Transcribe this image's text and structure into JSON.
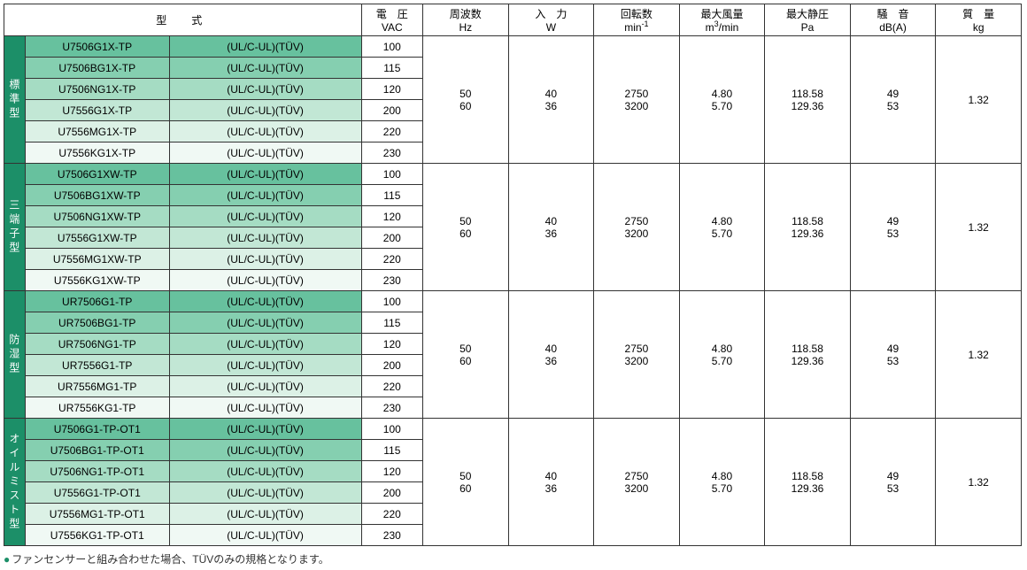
{
  "headers": {
    "model": "型　式",
    "voltage_l1": "電　圧",
    "voltage_l2": "VAC",
    "freq_l1": "周波数",
    "freq_l2": "Hz",
    "input_l1": "入　力",
    "input_l2": "W",
    "rpm_l1": "回転数",
    "rpm_l2_pre": "min",
    "rpm_l2_sup": "-1",
    "airflow_l1": "最大風量",
    "airflow_l2_pre": "m",
    "airflow_l2_sup": "3",
    "airflow_l2_post": "/min",
    "press_l1": "最大静圧",
    "press_l2": "Pa",
    "noise_l1": "騒　音",
    "noise_l2": "dB(A)",
    "mass_l1": "質　量",
    "mass_l2": "kg"
  },
  "categories": [
    {
      "label": "標準型",
      "rows": [
        {
          "model": "U7506G1X-TP",
          "cert": "(UL/C-UL)(TÜV)",
          "vac": "100"
        },
        {
          "model": "U7506BG1X-TP",
          "cert": "(UL/C-UL)(TÜV)",
          "vac": "115"
        },
        {
          "model": "U7506NG1X-TP",
          "cert": "(UL/C-UL)(TÜV)",
          "vac": "120"
        },
        {
          "model": "U7556G1X-TP",
          "cert": "(UL/C-UL)(TÜV)",
          "vac": "200"
        },
        {
          "model": "U7556MG1X-TP",
          "cert": "(UL/C-UL)(TÜV)",
          "vac": "220"
        },
        {
          "model": "U7556KG1X-TP",
          "cert": "(UL/C-UL)(TÜV)",
          "vac": "230"
        }
      ]
    },
    {
      "label": "三端子型",
      "rows": [
        {
          "model": "U7506G1XW-TP",
          "cert": "(UL/C-UL)(TÜV)",
          "vac": "100"
        },
        {
          "model": "U7506BG1XW-TP",
          "cert": "(UL/C-UL)(TÜV)",
          "vac": "115"
        },
        {
          "model": "U7506NG1XW-TP",
          "cert": "(UL/C-UL)(TÜV)",
          "vac": "120"
        },
        {
          "model": "U7556G1XW-TP",
          "cert": "(UL/C-UL)(TÜV)",
          "vac": "200"
        },
        {
          "model": "U7556MG1XW-TP",
          "cert": "(UL/C-UL)(TÜV)",
          "vac": "220"
        },
        {
          "model": "U7556KG1XW-TP",
          "cert": "(UL/C-UL)(TÜV)",
          "vac": "230"
        }
      ]
    },
    {
      "label": "防湿型",
      "rows": [
        {
          "model": "UR7506G1-TP",
          "cert": "(UL/C-UL)(TÜV)",
          "vac": "100"
        },
        {
          "model": "UR7506BG1-TP",
          "cert": "(UL/C-UL)(TÜV)",
          "vac": "115"
        },
        {
          "model": "UR7506NG1-TP",
          "cert": "(UL/C-UL)(TÜV)",
          "vac": "120"
        },
        {
          "model": "UR7556G1-TP",
          "cert": "(UL/C-UL)(TÜV)",
          "vac": "200"
        },
        {
          "model": "UR7556MG1-TP",
          "cert": "(UL/C-UL)(TÜV)",
          "vac": "220"
        },
        {
          "model": "UR7556KG1-TP",
          "cert": "(UL/C-UL)(TÜV)",
          "vac": "230"
        }
      ]
    },
    {
      "label": "オイルミスト型",
      "rows": [
        {
          "model": "U7506G1-TP-OT1",
          "cert": "(UL/C-UL)(TÜV)",
          "vac": "100"
        },
        {
          "model": "U7506BG1-TP-OT1",
          "cert": "(UL/C-UL)(TÜV)",
          "vac": "115"
        },
        {
          "model": "U7506NG1-TP-OT1",
          "cert": "(UL/C-UL)(TÜV)",
          "vac": "120"
        },
        {
          "model": "U7556G1-TP-OT1",
          "cert": "(UL/C-UL)(TÜV)",
          "vac": "200"
        },
        {
          "model": "U7556MG1-TP-OT1",
          "cert": "(UL/C-UL)(TÜV)",
          "vac": "220"
        },
        {
          "model": "U7556KG1-TP-OT1",
          "cert": "(UL/C-UL)(TÜV)",
          "vac": "230"
        }
      ]
    }
  ],
  "spec_block": {
    "freq": [
      "50",
      "60"
    ],
    "input": [
      "40",
      "36"
    ],
    "rpm": [
      "2750",
      "3200"
    ],
    "airflow": [
      "4.80",
      "5.70"
    ],
    "press": [
      "118.58",
      "129.36"
    ],
    "noise": [
      "49",
      "53"
    ],
    "mass": "1.32"
  },
  "footnote": "ファンセンサーと組み合わせた場合、TÜVのみの規格となります。",
  "colors": {
    "cat_bg": "#1c8f68",
    "shades": [
      "#67c19e",
      "#85cfb0",
      "#a5dcc3",
      "#c2e7d5",
      "#dcf1e6",
      "#f0f9f4"
    ]
  }
}
